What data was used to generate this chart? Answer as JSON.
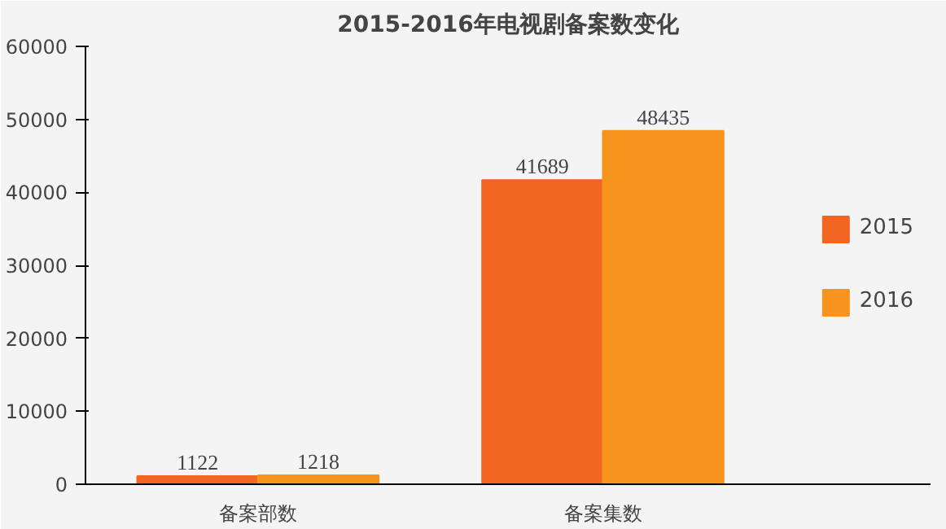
{
  "chart_data": {
    "type": "bar",
    "title": "2015-2016年电视剧备案数变化",
    "categories": [
      "备案部数",
      "备案集数"
    ],
    "series": [
      {
        "name": "2015",
        "color": "#f26522",
        "values": [
          1122,
          41689
        ]
      },
      {
        "name": "2016",
        "color": "#f7941d",
        "values": [
          1218,
          48435
        ]
      }
    ],
    "ylim": [
      0,
      60000
    ],
    "yticks": [
      0,
      10000,
      20000,
      30000,
      40000,
      50000,
      60000
    ],
    "data_labels": true,
    "legend": "right",
    "grid": false
  }
}
